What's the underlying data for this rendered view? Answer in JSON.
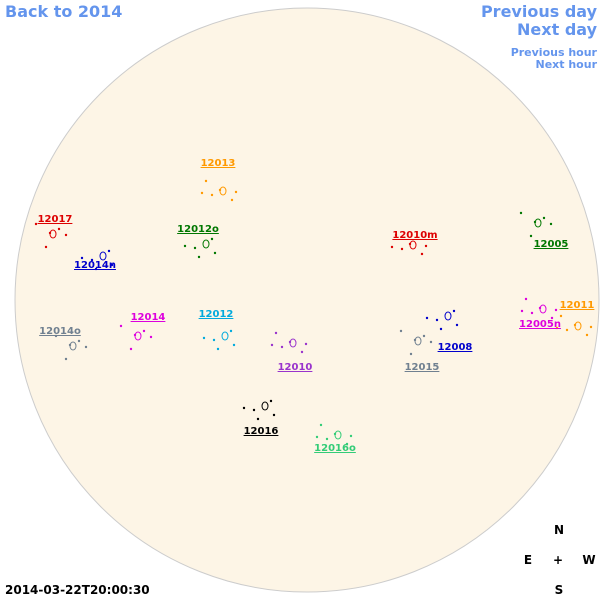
{
  "nav": {
    "back": "Back to 2014",
    "previous_day": "Previous day",
    "next_day": "Next day",
    "previous_hour": "Previous hour",
    "next_hour": "Next hour"
  },
  "regions": [
    {
      "label": "12013",
      "color": "#ff9900"
    },
    {
      "label": "12017",
      "color": "#dd0000"
    },
    {
      "label": "12012o",
      "color": "#007700"
    },
    {
      "label": "12010m",
      "color": "#dd0000"
    },
    {
      "label": "12005",
      "color": "#007700"
    },
    {
      "label": "12014n",
      "color": "#0000cc"
    },
    {
      "label": "12011",
      "color": "#ff9900"
    },
    {
      "label": "12014",
      "color": "#dd00dd"
    },
    {
      "label": "12012",
      "color": "#00aadd"
    },
    {
      "label": "12005n",
      "color": "#dd00dd"
    },
    {
      "label": "12014o",
      "color": "#708090"
    },
    {
      "label": "12008",
      "color": "#0000cc"
    },
    {
      "label": "12010",
      "color": "#9933cc"
    },
    {
      "label": "12015",
      "color": "#708090"
    },
    {
      "label": "12016",
      "color": "#000000"
    },
    {
      "label": "12016o",
      "color": "#33cc77"
    }
  ],
  "compass": {
    "north": "N",
    "east": "E",
    "center": "+",
    "west": "W",
    "south": "S"
  },
  "timestamp": "2014-03-22T20:00:30"
}
